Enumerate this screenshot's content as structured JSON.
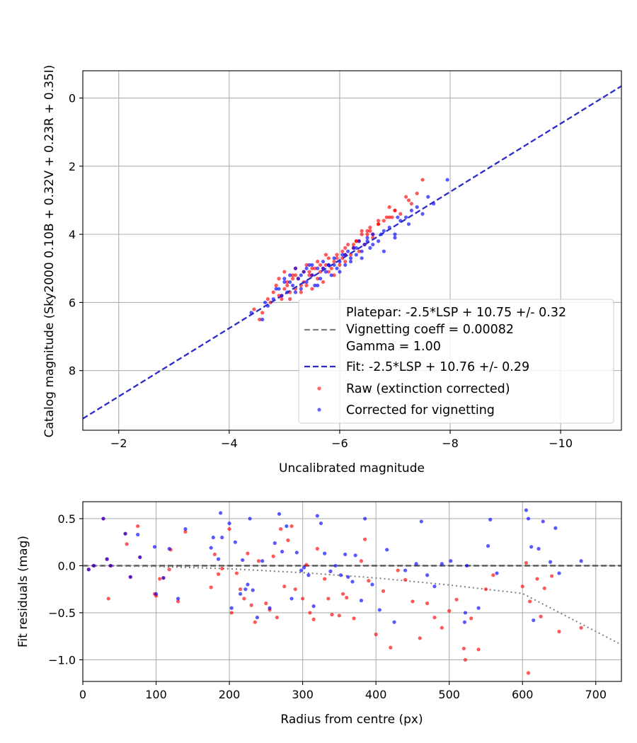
{
  "chart_data": [
    {
      "type": "scatter",
      "xlabel": "Uncalibrated magnitude",
      "ylabel": "Catalog magnitude (Sky2000 0.10B + 0.32V + 0.23R + 0.35I)",
      "xlim": [
        -1.35,
        -11.1
      ],
      "ylim": [
        9.75,
        -0.8
      ],
      "x_inverted": true,
      "y_inverted": true,
      "grid": true,
      "xticks": [
        -2,
        -4,
        -6,
        -8,
        -10
      ],
      "xtick_labels": [
        "−2",
        "−4",
        "−6",
        "−8",
        "−10"
      ],
      "yticks": [
        0,
        2,
        4,
        6,
        8
      ],
      "ytick_labels": [
        "0",
        "2",
        "4",
        "6",
        "8"
      ],
      "legend_position": "lower-right",
      "lines": [
        {
          "name": "Platepar: -2.5*LSP + 10.75 +/- 0.32",
          "label_lines": [
            "Platepar: -2.5*LSP + 10.75 +/- 0.32",
            "Vignetting coeff = 0.00082",
            "Gamma = 1.00"
          ],
          "color": "#808080",
          "style": "dashed",
          "x": [
            -1.35,
            -11.1
          ],
          "y": [
            9.36,
            -0.52
          ],
          "drawn": false
        },
        {
          "name": "Fit: -2.5*LSP + 10.76 +/- 0.29",
          "color": "#2b2bcc",
          "style": "dashed",
          "x": [
            -1.35,
            -11.1
          ],
          "y": [
            9.41,
            -0.35
          ]
        }
      ],
      "series": [
        {
          "name": "Raw (extinction corrected)",
          "color": "#ff0000",
          "x": [
            -4.45,
            -4.55,
            -4.7,
            -4.8,
            -4.85,
            -4.9,
            -4.95,
            -5.0,
            -5.0,
            -5.05,
            -5.1,
            -5.15,
            -5.2,
            -5.2,
            -5.25,
            -5.3,
            -5.35,
            -5.4,
            -5.4,
            -5.45,
            -5.5,
            -5.55,
            -5.6,
            -5.6,
            -5.65,
            -5.7,
            -5.75,
            -5.8,
            -5.85,
            -5.9,
            -5.95,
            -6.0,
            -6.05,
            -6.1,
            -6.15,
            -6.2,
            -6.25,
            -6.3,
            -6.35,
            -6.4,
            -6.45,
            -6.5,
            -6.55,
            -6.6,
            -6.7,
            -6.8,
            -6.9,
            -7.0,
            -7.1,
            -7.3,
            -7.5,
            -4.6,
            -4.75,
            -4.9,
            -5.05,
            -5.2,
            -5.35,
            -5.5,
            -5.65,
            -5.8,
            -5.95,
            -6.1,
            -6.25,
            -6.4,
            -6.55,
            -6.7,
            -6.85,
            -7.0,
            -7.2,
            -7.4,
            -5.1,
            -5.3,
            -5.5,
            -5.7,
            -5.9,
            -6.1,
            -6.3,
            -6.5,
            -6.7,
            -6.9,
            -4.95,
            -5.15,
            -5.45,
            -5.75,
            -6.05,
            -6.35,
            -6.6,
            -6.95,
            -7.25
          ],
          "y": [
            6.2,
            6.5,
            5.9,
            5.7,
            5.5,
            5.3,
            5.8,
            5.6,
            5.1,
            5.4,
            5.9,
            5.2,
            5.6,
            5.0,
            5.3,
            5.7,
            5.1,
            5.5,
            4.9,
            5.2,
            5.6,
            5.0,
            5.3,
            4.8,
            5.1,
            5.4,
            4.9,
            4.7,
            5.0,
            5.2,
            4.6,
            4.9,
            4.5,
            4.8,
            4.3,
            4.6,
            4.4,
            4.2,
            4.5,
            3.9,
            4.3,
            4.0,
            3.8,
            4.1,
            3.7,
            3.6,
            3.5,
            3.3,
            3.4,
            3.1,
            2.4,
            6.3,
            6.0,
            5.8,
            5.5,
            5.2,
            5.4,
            5.0,
            4.9,
            5.1,
            4.7,
            4.6,
            4.3,
            4.0,
            3.9,
            3.7,
            3.5,
            3.3,
            2.9,
            2.8,
            5.7,
            5.5,
            5.2,
            5.0,
            4.8,
            4.4,
            4.2,
            3.9,
            3.6,
            3.2,
            5.9,
            5.3,
            5.1,
            4.6,
            4.7,
            4.2,
            4.0,
            3.5,
            3.0
          ]
        },
        {
          "name": "Corrected for vignetting",
          "color": "#0000ff",
          "x": [
            -4.4,
            -4.6,
            -4.7,
            -4.8,
            -4.9,
            -4.95,
            -5.0,
            -5.05,
            -5.1,
            -5.15,
            -5.2,
            -5.25,
            -5.3,
            -5.35,
            -5.4,
            -5.45,
            -5.5,
            -5.55,
            -5.6,
            -5.65,
            -5.7,
            -5.75,
            -5.8,
            -5.85,
            -5.9,
            -5.95,
            -6.0,
            -6.05,
            -6.1,
            -6.15,
            -6.2,
            -6.25,
            -6.3,
            -6.35,
            -6.4,
            -6.45,
            -6.5,
            -6.55,
            -6.6,
            -6.7,
            -6.8,
            -6.9,
            -7.0,
            -7.1,
            -7.2,
            -7.3,
            -7.5,
            -7.7,
            -7.95,
            -4.65,
            -4.85,
            -5.0,
            -5.2,
            -5.4,
            -5.6,
            -5.8,
            -6.0,
            -6.2,
            -6.4,
            -6.6,
            -6.8,
            -7.0,
            -7.25,
            -7.6,
            -5.1,
            -5.3,
            -5.5,
            -5.7,
            -5.9,
            -6.1,
            -6.3,
            -6.5,
            -6.75,
            -7.05,
            -7.4
          ],
          "y": [
            6.3,
            6.5,
            6.1,
            5.9,
            5.6,
            5.8,
            5.4,
            5.7,
            5.2,
            5.5,
            5.0,
            5.3,
            5.6,
            5.1,
            5.4,
            4.9,
            5.2,
            5.5,
            5.0,
            5.3,
            4.8,
            5.1,
            4.9,
            5.2,
            4.7,
            5.0,
            4.8,
            4.6,
            4.9,
            4.5,
            4.7,
            4.4,
            4.6,
            4.2,
            4.5,
            4.3,
            4.1,
            4.4,
            4.0,
            4.2,
            3.9,
            3.8,
            4.1,
            3.6,
            3.5,
            3.3,
            3.4,
            3.1,
            2.4,
            6.0,
            5.6,
            5.3,
            5.7,
            5.0,
            5.5,
            4.9,
            5.1,
            4.8,
            4.7,
            4.3,
            4.5,
            4.0,
            3.7,
            2.9,
            5.4,
            5.2,
            4.9,
            5.0,
            4.9,
            4.6,
            4.4,
            4.2,
            4.0,
            3.5,
            3.2
          ]
        }
      ]
    },
    {
      "type": "scatter",
      "xlabel": "Radius from centre (px)",
      "ylabel": "Fit residuals (mag)",
      "xlim": [
        0,
        735
      ],
      "ylim": [
        -1.23,
        0.68
      ],
      "grid": true,
      "xticks": [
        0,
        100,
        200,
        300,
        400,
        500,
        600,
        700
      ],
      "xtick_labels": [
        "0",
        "100",
        "200",
        "300",
        "400",
        "500",
        "600",
        "700"
      ],
      "yticks": [
        0.5,
        0.0,
        -0.5,
        -1.0
      ],
      "ytick_labels": [
        "0.5",
        "0.0",
        "−0.5",
        "−1.0"
      ],
      "lines": [
        {
          "name": "zero",
          "color": "#555555",
          "style": "dashed",
          "x": [
            0,
            735
          ],
          "y": [
            0,
            0
          ]
        },
        {
          "name": "vignetting model",
          "color": "#808080",
          "style": "dotted",
          "x": [
            0,
            100,
            200,
            300,
            400,
            500,
            600,
            735
          ],
          "y": [
            0,
            -0.008,
            -0.033,
            -0.074,
            -0.13,
            -0.205,
            -0.295,
            -0.84
          ]
        }
      ],
      "series": [
        {
          "name": "Raw (extinction corrected)",
          "color": "#ff0000",
          "x": [
            8,
            15,
            28,
            33,
            35,
            38,
            58,
            60,
            65,
            75,
            78,
            98,
            100,
            105,
            110,
            118,
            120,
            130,
            140,
            175,
            180,
            185,
            190,
            200,
            203,
            210,
            215,
            220,
            225,
            230,
            235,
            240,
            250,
            255,
            260,
            265,
            270,
            275,
            280,
            285,
            290,
            300,
            305,
            310,
            315,
            320,
            330,
            335,
            340,
            350,
            355,
            360,
            370,
            380,
            385,
            390,
            400,
            410,
            420,
            430,
            440,
            450,
            460,
            470,
            480,
            490,
            500,
            510,
            520,
            530,
            540,
            550,
            560,
            600,
            605,
            610,
            620,
            625,
            630,
            640,
            650,
            680,
            522,
            608
          ],
          "x_note": "",
          "y": [
            -0.04,
            0.0,
            0.5,
            0.07,
            -0.35,
            0.0,
            0.34,
            0.23,
            -0.12,
            0.42,
            0.09,
            -0.3,
            -0.32,
            -0.14,
            -0.13,
            -0.04,
            0.17,
            -0.38,
            0.36,
            -0.23,
            0.12,
            -0.09,
            -0.03,
            0.39,
            -0.5,
            -0.08,
            -0.25,
            -0.35,
            0.13,
            -0.42,
            -0.6,
            0.05,
            -0.4,
            -0.47,
            0.1,
            -0.55,
            0.39,
            -0.22,
            0.27,
            0.42,
            -0.25,
            -0.35,
            0.01,
            -0.5,
            -0.57,
            0.18,
            -0.14,
            -0.35,
            -0.52,
            -0.53,
            -0.3,
            -0.34,
            -0.56,
            0.05,
            0.28,
            -0.16,
            -0.73,
            -0.27,
            -0.87,
            -0.05,
            -0.15,
            -0.38,
            -0.77,
            -0.4,
            -0.55,
            -0.66,
            -0.48,
            -0.36,
            -0.88,
            -0.56,
            -0.89,
            -0.25,
            -0.1,
            -0.22,
            0.03,
            -0.38,
            -0.14,
            -0.54,
            -0.24,
            -0.11,
            -0.7,
            -0.66,
            -1.0,
            -1.14
          ]
        },
        {
          "name": "Corrected for vignetting",
          "color": "#0000ff",
          "x": [
            8,
            15,
            28,
            33,
            38,
            58,
            65,
            75,
            78,
            98,
            100,
            110,
            118,
            130,
            140,
            175,
            178,
            185,
            188,
            190,
            200,
            203,
            208,
            215,
            218,
            222,
            225,
            228,
            232,
            238,
            245,
            255,
            262,
            268,
            272,
            278,
            285,
            292,
            298,
            302,
            308,
            315,
            320,
            325,
            330,
            338,
            345,
            352,
            358,
            362,
            368,
            372,
            380,
            385,
            395,
            405,
            415,
            425,
            440,
            455,
            462,
            470,
            480,
            490,
            502,
            521,
            522,
            524,
            540,
            553,
            556,
            565,
            605,
            608,
            612,
            615,
            622,
            628,
            638,
            645,
            650,
            680
          ],
          "y": [
            -0.04,
            0.0,
            0.5,
            0.07,
            0.0,
            0.34,
            -0.12,
            0.33,
            0.09,
            0.2,
            -0.3,
            -0.13,
            0.18,
            -0.35,
            0.39,
            0.19,
            0.3,
            0.07,
            0.56,
            0.3,
            0.45,
            -0.45,
            0.25,
            -0.3,
            0.06,
            -0.25,
            -0.2,
            0.5,
            -0.26,
            -0.55,
            0.05,
            -0.45,
            0.24,
            0.55,
            0.15,
            0.42,
            -0.35,
            0.14,
            -0.05,
            -0.02,
            -0.1,
            -0.43,
            0.53,
            0.45,
            0.13,
            -0.06,
            0.0,
            -0.1,
            0.12,
            -0.12,
            -0.17,
            0.11,
            -0.37,
            0.5,
            -0.2,
            -0.47,
            0.17,
            -0.6,
            -0.05,
            0.02,
            0.47,
            -0.1,
            -0.22,
            0.02,
            0.05,
            -0.6,
            -0.5,
            0.0,
            -0.45,
            0.21,
            0.49,
            -0.08,
            0.59,
            0.5,
            0.2,
            -0.58,
            0.18,
            0.47,
            0.04,
            0.4,
            -0.08,
            0.05
          ]
        }
      ]
    }
  ],
  "legend": {
    "platepar_line1": "Platepar: -2.5*LSP + 10.75 +/- 0.32",
    "platepar_line2": "Vignetting coeff = 0.00082",
    "platepar_line3": "Gamma = 1.00",
    "fit": "Fit: -2.5*LSP + 10.76 +/- 0.29",
    "raw": "Raw (extinction corrected)",
    "corrected": "Corrected for vignetting"
  }
}
